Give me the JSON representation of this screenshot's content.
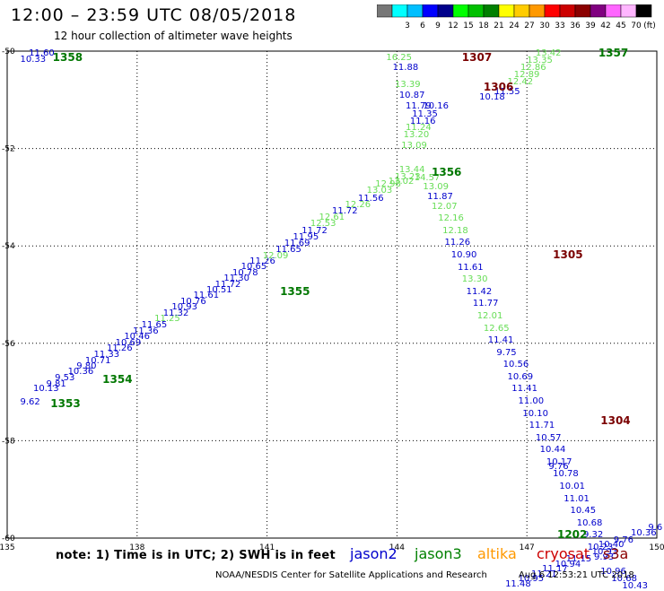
{
  "header": {
    "title": "12:00 – 23:59 UTC 08/05/2018",
    "subtitle": "12 hour collection of altimeter wave heights"
  },
  "legend": {
    "unit": "(ft)",
    "swatches": [
      {
        "color": "#777777",
        "label": ""
      },
      {
        "color": "#00ffff",
        "label": "3"
      },
      {
        "color": "#00bfff",
        "label": "6"
      },
      {
        "color": "#0000ff",
        "label": "9"
      },
      {
        "color": "#00008b",
        "label": "12"
      },
      {
        "color": "#00ff00",
        "label": "15"
      },
      {
        "color": "#00c000",
        "label": "18"
      },
      {
        "color": "#008000",
        "label": "21"
      },
      {
        "color": "#ffff00",
        "label": "24"
      },
      {
        "color": "#ffcc00",
        "label": "27"
      },
      {
        "color": "#ff9900",
        "label": "30"
      },
      {
        "color": "#ff0000",
        "label": "33"
      },
      {
        "color": "#cc0000",
        "label": "36"
      },
      {
        "color": "#8b0000",
        "label": "39"
      },
      {
        "color": "#800080",
        "label": "42"
      },
      {
        "color": "#ff66ff",
        "label": "45"
      },
      {
        "color": "#ffb6ff",
        "label": "70"
      },
      {
        "color": "#000000",
        "label": ""
      }
    ]
  },
  "axes": {
    "lon_min": 135,
    "lon_max": 150,
    "lat_min": -60,
    "lat_max": -50,
    "x_ticks": [
      "135",
      "138",
      "141",
      "144",
      "147",
      "150"
    ],
    "y_ticks": [
      "-50",
      "-52",
      "-54",
      "-56",
      "-58",
      "-60"
    ]
  },
  "colors": {
    "jason2": "#0000cc",
    "jason3": "#008000",
    "altika": "#ff9900",
    "cryosat": "#cc0000",
    "s3a": "#8b0000",
    "jason3_values": "#66dd55",
    "pass_green": "#007700",
    "pass_dark": "#7a0000"
  },
  "footer": {
    "note": "note:  1) Time is in UTC;  2) SWH is in feet",
    "satellites": [
      {
        "name": "jason2",
        "color": "#0000cc"
      },
      {
        "name": "jason3",
        "color": "#008000"
      },
      {
        "name": "altika",
        "color": "#ff9900"
      },
      {
        "name": "cryosat",
        "color": "#cc0000"
      },
      {
        "name": "s3a",
        "color": "#8b0000"
      }
    ],
    "credit": "NOAA/NESDIS Center for Satellite Applications and Research",
    "timestamp": "Aug  6 12:53:21 UTC 2018"
  },
  "passes": [
    {
      "label": "1358",
      "lon": 136.05,
      "lat": -50.15,
      "color": "pass_green"
    },
    {
      "label": "1307",
      "lon": 145.5,
      "lat": -50.15,
      "color": "pass_dark"
    },
    {
      "label": "1357",
      "lon": 148.65,
      "lat": -50.05,
      "color": "pass_green"
    },
    {
      "label": "1306",
      "lon": 146.0,
      "lat": -50.75,
      "color": "pass_dark"
    },
    {
      "label": "1356",
      "lon": 144.8,
      "lat": -52.5,
      "color": "pass_green"
    },
    {
      "label": "1305",
      "lon": 147.6,
      "lat": -54.2,
      "color": "pass_dark"
    },
    {
      "label": "1355",
      "lon": 141.3,
      "lat": -54.95,
      "color": "pass_green"
    },
    {
      "label": "1354",
      "lon": 137.2,
      "lat": -56.75,
      "color": "pass_green"
    },
    {
      "label": "1353",
      "lon": 136.0,
      "lat": -57.25,
      "color": "pass_green"
    },
    {
      "label": "1304",
      "lon": 148.7,
      "lat": -57.6,
      "color": "pass_dark"
    },
    {
      "label": "1202",
      "lon": 147.7,
      "lat": -59.95,
      "color": "pass_green"
    }
  ],
  "observations": [
    {
      "v": "11.60",
      "lon": 135.5,
      "lat": -50.05,
      "c": "jason2"
    },
    {
      "v": "10.33",
      "lon": 135.3,
      "lat": -50.18,
      "c": "jason2"
    },
    {
      "v": "10.13",
      "lon": 135.6,
      "lat": -56.95,
      "c": "jason2"
    },
    {
      "v": "9.62",
      "lon": 135.3,
      "lat": -57.22,
      "c": "jason2"
    },
    {
      "v": "9.81",
      "lon": 135.9,
      "lat": -56.85,
      "c": "jason2"
    },
    {
      "v": "9.53",
      "lon": 136.1,
      "lat": -56.72,
      "c": "jason2"
    },
    {
      "v": "10.36",
      "lon": 136.4,
      "lat": -56.6,
      "c": "jason2"
    },
    {
      "v": "9.80",
      "lon": 136.6,
      "lat": -56.48,
      "c": "jason2"
    },
    {
      "v": "10.71",
      "lon": 136.8,
      "lat": -56.37,
      "c": "jason2"
    },
    {
      "v": "11.33",
      "lon": 137.0,
      "lat": -56.25,
      "c": "jason2"
    },
    {
      "v": "11.26",
      "lon": 137.3,
      "lat": -56.12,
      "c": "jason2"
    },
    {
      "v": "10.69",
      "lon": 137.5,
      "lat": -56.01,
      "c": "jason2"
    },
    {
      "v": "10.46",
      "lon": 137.7,
      "lat": -55.88,
      "c": "jason2"
    },
    {
      "v": "11.36",
      "lon": 137.9,
      "lat": -55.76,
      "c": "jason2"
    },
    {
      "v": "11.65",
      "lon": 138.1,
      "lat": -55.63,
      "c": "jason2"
    },
    {
      "v": "11.25",
      "lon": 138.4,
      "lat": -55.5,
      "c": "jason3_values"
    },
    {
      "v": "11.32",
      "lon": 138.6,
      "lat": -55.39,
      "c": "jason2"
    },
    {
      "v": "10.93",
      "lon": 138.8,
      "lat": -55.27,
      "c": "jason2"
    },
    {
      "v": "10.76",
      "lon": 139.0,
      "lat": -55.15,
      "c": "jason2"
    },
    {
      "v": "11.61",
      "lon": 139.3,
      "lat": -55.03,
      "c": "jason2"
    },
    {
      "v": "10.51",
      "lon": 139.6,
      "lat": -54.92,
      "c": "jason2"
    },
    {
      "v": "11.72",
      "lon": 139.8,
      "lat": -54.8,
      "c": "jason2"
    },
    {
      "v": "11.30",
      "lon": 140.0,
      "lat": -54.68,
      "c": "jason2"
    },
    {
      "v": "10.78",
      "lon": 140.2,
      "lat": -54.56,
      "c": "jason2"
    },
    {
      "v": "10.65",
      "lon": 140.4,
      "lat": -54.44,
      "c": "jason2"
    },
    {
      "v": "11.26",
      "lon": 140.6,
      "lat": -54.33,
      "c": "jason2"
    },
    {
      "v": "12.09",
      "lon": 140.9,
      "lat": -54.21,
      "c": "jason3_values"
    },
    {
      "v": "11.65",
      "lon": 141.2,
      "lat": -54.09,
      "c": "jason2"
    },
    {
      "v": "11.69",
      "lon": 141.4,
      "lat": -53.96,
      "c": "jason2"
    },
    {
      "v": "11.95",
      "lon": 141.6,
      "lat": -53.83,
      "c": "jason2"
    },
    {
      "v": "11.72",
      "lon": 141.8,
      "lat": -53.7,
      "c": "jason2"
    },
    {
      "v": "12.53",
      "lon": 142.0,
      "lat": -53.56,
      "c": "jason3_values"
    },
    {
      "v": "12.61",
      "lon": 142.2,
      "lat": -53.43,
      "c": "jason3_values"
    },
    {
      "v": "11.72",
      "lon": 142.5,
      "lat": -53.3,
      "c": "jason2"
    },
    {
      "v": "12.26",
      "lon": 142.8,
      "lat": -53.16,
      "c": "jason3_values"
    },
    {
      "v": "11.56",
      "lon": 143.1,
      "lat": -53.04,
      "c": "jason2"
    },
    {
      "v": "13.03",
      "lon": 143.3,
      "lat": -52.88,
      "c": "jason3_values"
    },
    {
      "v": "12.98",
      "lon": 143.5,
      "lat": -52.74,
      "c": "jason3_values"
    },
    {
      "v": "13.02",
      "lon": 143.8,
      "lat": -52.68,
      "c": "jason3_values"
    },
    {
      "v": "13.23",
      "lon": 143.95,
      "lat": -52.6,
      "c": "jason3_values"
    },
    {
      "v": "13.44",
      "lon": 144.05,
      "lat": -52.45,
      "c": "jason3_values"
    },
    {
      "v": "14.57",
      "lon": 144.4,
      "lat": -52.62,
      "c": "jason3_values"
    },
    {
      "v": "13.09",
      "lon": 144.6,
      "lat": -52.8,
      "c": "jason3_values"
    },
    {
      "v": "11.87",
      "lon": 144.7,
      "lat": -53.0,
      "c": "jason2"
    },
    {
      "v": "12.07",
      "lon": 144.8,
      "lat": -53.2,
      "c": "jason3_values"
    },
    {
      "v": "12.16",
      "lon": 144.95,
      "lat": -53.45,
      "c": "jason3_values"
    },
    {
      "v": "12.18",
      "lon": 145.05,
      "lat": -53.7,
      "c": "jason3_values"
    },
    {
      "v": "11.26",
      "lon": 145.1,
      "lat": -53.95,
      "c": "jason2"
    },
    {
      "v": "10.90",
      "lon": 145.25,
      "lat": -54.2,
      "c": "jason2"
    },
    {
      "v": "11.61",
      "lon": 145.4,
      "lat": -54.45,
      "c": "jason2"
    },
    {
      "v": "13.30",
      "lon": 145.5,
      "lat": -54.7,
      "c": "jason3_values"
    },
    {
      "v": "11.42",
      "lon": 145.6,
      "lat": -54.95,
      "c": "jason2"
    },
    {
      "v": "11.77",
      "lon": 145.75,
      "lat": -55.2,
      "c": "jason2"
    },
    {
      "v": "12.01",
      "lon": 145.85,
      "lat": -55.45,
      "c": "jason3_values"
    },
    {
      "v": "12.65",
      "lon": 146.0,
      "lat": -55.7,
      "c": "jason3_values"
    },
    {
      "v": "11.41",
      "lon": 146.1,
      "lat": -55.95,
      "c": "jason2"
    },
    {
      "v": "9.75",
      "lon": 146.3,
      "lat": -56.2,
      "c": "jason2"
    },
    {
      "v": "10.56",
      "lon": 146.45,
      "lat": -56.45,
      "c": "jason2"
    },
    {
      "v": "10.69",
      "lon": 146.55,
      "lat": -56.7,
      "c": "jason2"
    },
    {
      "v": "11.41",
      "lon": 146.65,
      "lat": -56.95,
      "c": "jason2"
    },
    {
      "v": "11.00",
      "lon": 146.8,
      "lat": -57.2,
      "c": "jason2"
    },
    {
      "v": "10.10",
      "lon": 146.9,
      "lat": -57.45,
      "c": "jason2"
    },
    {
      "v": "11.71",
      "lon": 147.05,
      "lat": -57.7,
      "c": "jason2"
    },
    {
      "v": "10.57",
      "lon": 147.2,
      "lat": -57.95,
      "c": "jason2"
    },
    {
      "v": "10.44",
      "lon": 147.3,
      "lat": -58.2,
      "c": "jason2"
    },
    {
      "v": "10.17",
      "lon": 147.45,
      "lat": -58.45,
      "c": "jason2"
    },
    {
      "v": "9.76",
      "lon": 147.5,
      "lat": -58.55,
      "c": "jason2"
    },
    {
      "v": "10.78",
      "lon": 147.6,
      "lat": -58.7,
      "c": "jason2"
    },
    {
      "v": "10.01",
      "lon": 147.75,
      "lat": -58.95,
      "c": "jason2"
    },
    {
      "v": "11.01",
      "lon": 147.85,
      "lat": -59.2,
      "c": "jason2"
    },
    {
      "v": "10.45",
      "lon": 148.0,
      "lat": -59.45,
      "c": "jason2"
    },
    {
      "v": "10.68",
      "lon": 148.15,
      "lat": -59.7,
      "c": "jason2"
    },
    {
      "v": "9.32",
      "lon": 148.3,
      "lat": -59.95,
      "c": "jason2"
    },
    {
      "v": "10.23",
      "lon": 148.4,
      "lat": -60.2,
      "c": "jason2"
    },
    {
      "v": "10.40",
      "lon": 148.65,
      "lat": -60.15,
      "c": "jason2"
    },
    {
      "v": "9.76",
      "lon": 149.0,
      "lat": -60.05,
      "c": "jason2"
    },
    {
      "v": "10.36",
      "lon": 149.4,
      "lat": -59.9,
      "c": "jason2"
    },
    {
      "v": "9.6",
      "lon": 149.8,
      "lat": -59.8,
      "c": "jason2"
    },
    {
      "v": "10.93",
      "lon": 148.5,
      "lat": -60.3,
      "c": "jason2"
    },
    {
      "v": "9.93",
      "lon": 148.55,
      "lat": -60.4,
      "c": "jason2"
    },
    {
      "v": "11.15",
      "lon": 147.9,
      "lat": -60.45,
      "c": "jason2"
    },
    {
      "v": "10.94",
      "lon": 147.65,
      "lat": -60.55,
      "c": "jason2"
    },
    {
      "v": "11.17",
      "lon": 147.35,
      "lat": -60.65,
      "c": "jason2"
    },
    {
      "v": "11.21",
      "lon": 147.1,
      "lat": -60.75,
      "c": "jason2"
    },
    {
      "v": "10.95",
      "lon": 146.8,
      "lat": -60.85,
      "c": "jason2"
    },
    {
      "v": "11.48",
      "lon": 146.5,
      "lat": -60.95,
      "c": "jason2"
    },
    {
      "v": "10.96",
      "lon": 148.7,
      "lat": -60.7,
      "c": "jason2"
    },
    {
      "v": "10.68",
      "lon": 148.95,
      "lat": -60.85,
      "c": "jason2"
    },
    {
      "v": "10.43",
      "lon": 149.2,
      "lat": -61.0,
      "c": "jason2"
    },
    {
      "v": "16.25",
      "lon": 143.75,
      "lat": -50.15,
      "c": "jason3_values"
    },
    {
      "v": "11.88",
      "lon": 143.9,
      "lat": -50.35,
      "c": "jason2"
    },
    {
      "v": "13.39",
      "lon": 143.95,
      "lat": -50.7,
      "c": "jason3_values"
    },
    {
      "v": "10.87",
      "lon": 144.05,
      "lat": -50.92,
      "c": "jason2"
    },
    {
      "v": "11.79",
      "lon": 144.2,
      "lat": -51.15,
      "c": "jason2"
    },
    {
      "v": "10.16",
      "lon": 144.6,
      "lat": -51.15,
      "c": "jason2"
    },
    {
      "v": "11.35",
      "lon": 144.35,
      "lat": -51.3,
      "c": "jason2"
    },
    {
      "v": "11.16",
      "lon": 144.3,
      "lat": -51.45,
      "c": "jason2"
    },
    {
      "v": "11.24",
      "lon": 144.2,
      "lat": -51.58,
      "c": "jason3_values"
    },
    {
      "v": "13.20",
      "lon": 144.15,
      "lat": -51.73,
      "c": "jason3_values"
    },
    {
      "v": "13.09",
      "lon": 144.1,
      "lat": -51.95,
      "c": "jason3_values"
    },
    {
      "v": "10.18",
      "lon": 145.9,
      "lat": -50.95,
      "c": "jason2"
    },
    {
      "v": "11.55",
      "lon": 146.25,
      "lat": -50.85,
      "c": "jason2"
    },
    {
      "v": "12.42",
      "lon": 146.55,
      "lat": -50.65,
      "c": "jason3_values"
    },
    {
      "v": "12.89",
      "lon": 146.7,
      "lat": -50.5,
      "c": "jason3_values"
    },
    {
      "v": "12.86",
      "lon": 146.85,
      "lat": -50.35,
      "c": "jason3_values"
    },
    {
      "v": "13.35",
      "lon": 147.0,
      "lat": -50.2,
      "c": "jason3_values"
    },
    {
      "v": "13.42",
      "lon": 147.2,
      "lat": -50.05,
      "c": "jason3_values"
    }
  ]
}
